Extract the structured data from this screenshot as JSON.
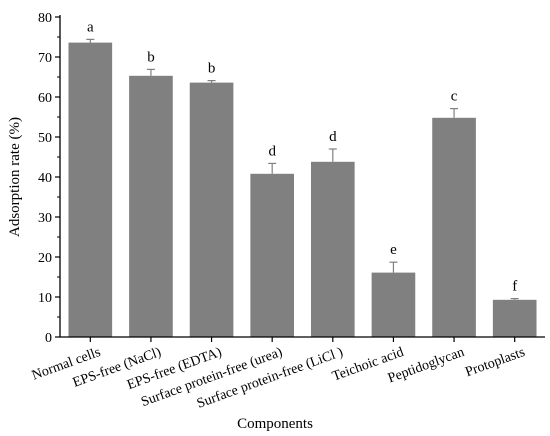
{
  "chart_data": {
    "type": "bar",
    "xlabel": "Components",
    "ylabel": "Adsorption rate (%)",
    "ylim": [
      0,
      80
    ],
    "yticks": [
      "0",
      "10",
      "20",
      "30",
      "40",
      "50",
      "60",
      "70",
      "80"
    ],
    "categories": [
      "Normal cells",
      "EPS-free (NaCl)",
      "EPS-free (EDTA)",
      "Surface protein-free (urea)",
      "Surface protein-free (LiCl )",
      "Teichoic acid",
      "Peptidoglycan",
      "Protoplasts"
    ],
    "values": [
      73.6,
      65.3,
      63.6,
      40.8,
      43.8,
      16.1,
      54.8,
      9.3
    ],
    "errors": [
      0.8,
      1.6,
      0.5,
      2.6,
      3.2,
      2.6,
      2.3,
      0.3
    ],
    "significance": [
      "a",
      "b",
      "b",
      "d",
      "d",
      "e",
      "c",
      "f"
    ],
    "bar_color": "#808080",
    "grid": false,
    "legend": "none"
  }
}
